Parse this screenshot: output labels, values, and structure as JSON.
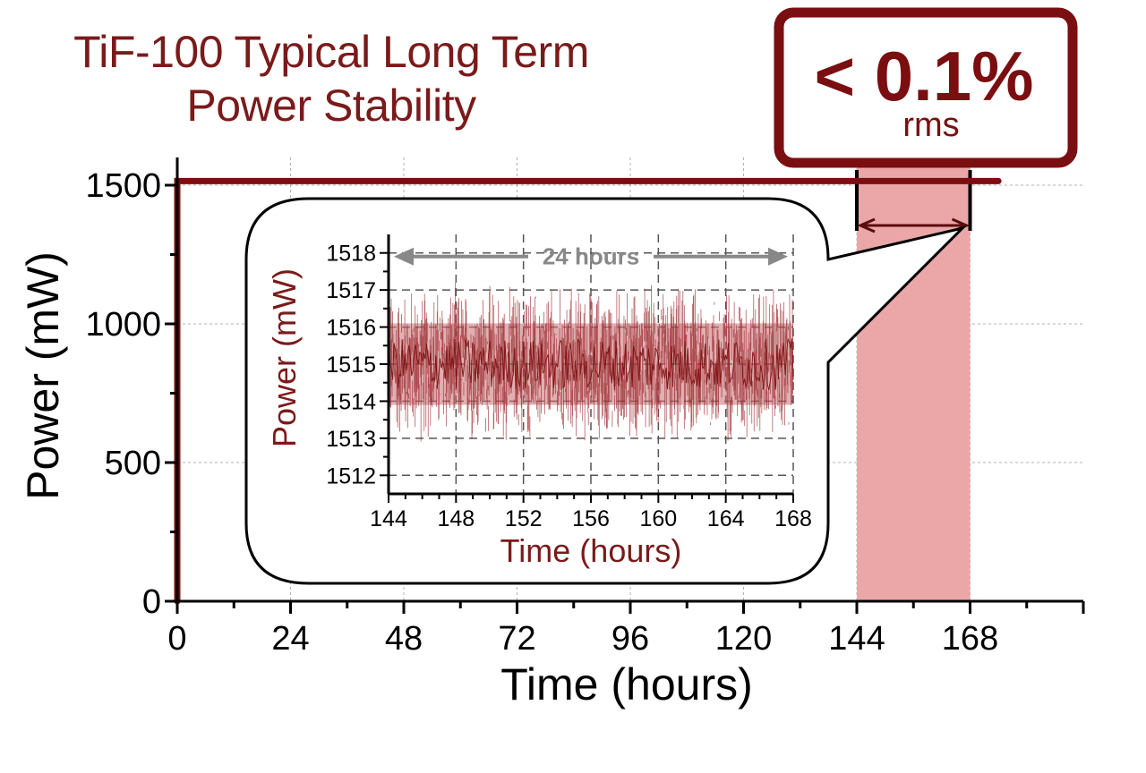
{
  "title": {
    "line1": "TiF-100 Typical Long Term",
    "line2": "Power Stability"
  },
  "callout": {
    "value": "< 0.1%",
    "unit": "rms"
  },
  "inset_span_label": "24 hours",
  "colors": {
    "series": "#7b0e10",
    "title": "#7b1a1a",
    "highlight": "#eba7a8",
    "inset_band": "#c86f72"
  },
  "chart_data": [
    {
      "type": "line",
      "xlabel": "Time (hours)",
      "ylabel": "Power (mW)",
      "xlim": [
        0,
        192
      ],
      "ylim": [
        0,
        1600
      ],
      "xticks": [
        0,
        24,
        48,
        72,
        96,
        120,
        144,
        168
      ],
      "yticks": [
        0,
        500,
        1000,
        1500
      ],
      "grid": true,
      "highlight_range": [
        144,
        168
      ],
      "series": [
        {
          "x": [
            0,
            0,
            174
          ],
          "y": [
            0,
            1515,
            1515
          ]
        }
      ]
    },
    {
      "type": "line",
      "xlabel": "Time (hours)",
      "ylabel": "Power (mW)",
      "xlim": [
        144,
        168
      ],
      "ylim": [
        1511.5,
        1518.5
      ],
      "xticks": [
        144,
        148,
        152,
        156,
        160,
        164,
        168
      ],
      "yticks": [
        1512,
        1513,
        1514,
        1515,
        1516,
        1517,
        1518
      ],
      "grid": true,
      "series": [
        {
          "x": [
            144,
            168
          ],
          "y": [
            1515,
            1515
          ],
          "min": 1512.7,
          "max": 1517.3,
          "band": [
            1513.9,
            1516.1
          ]
        }
      ]
    }
  ]
}
